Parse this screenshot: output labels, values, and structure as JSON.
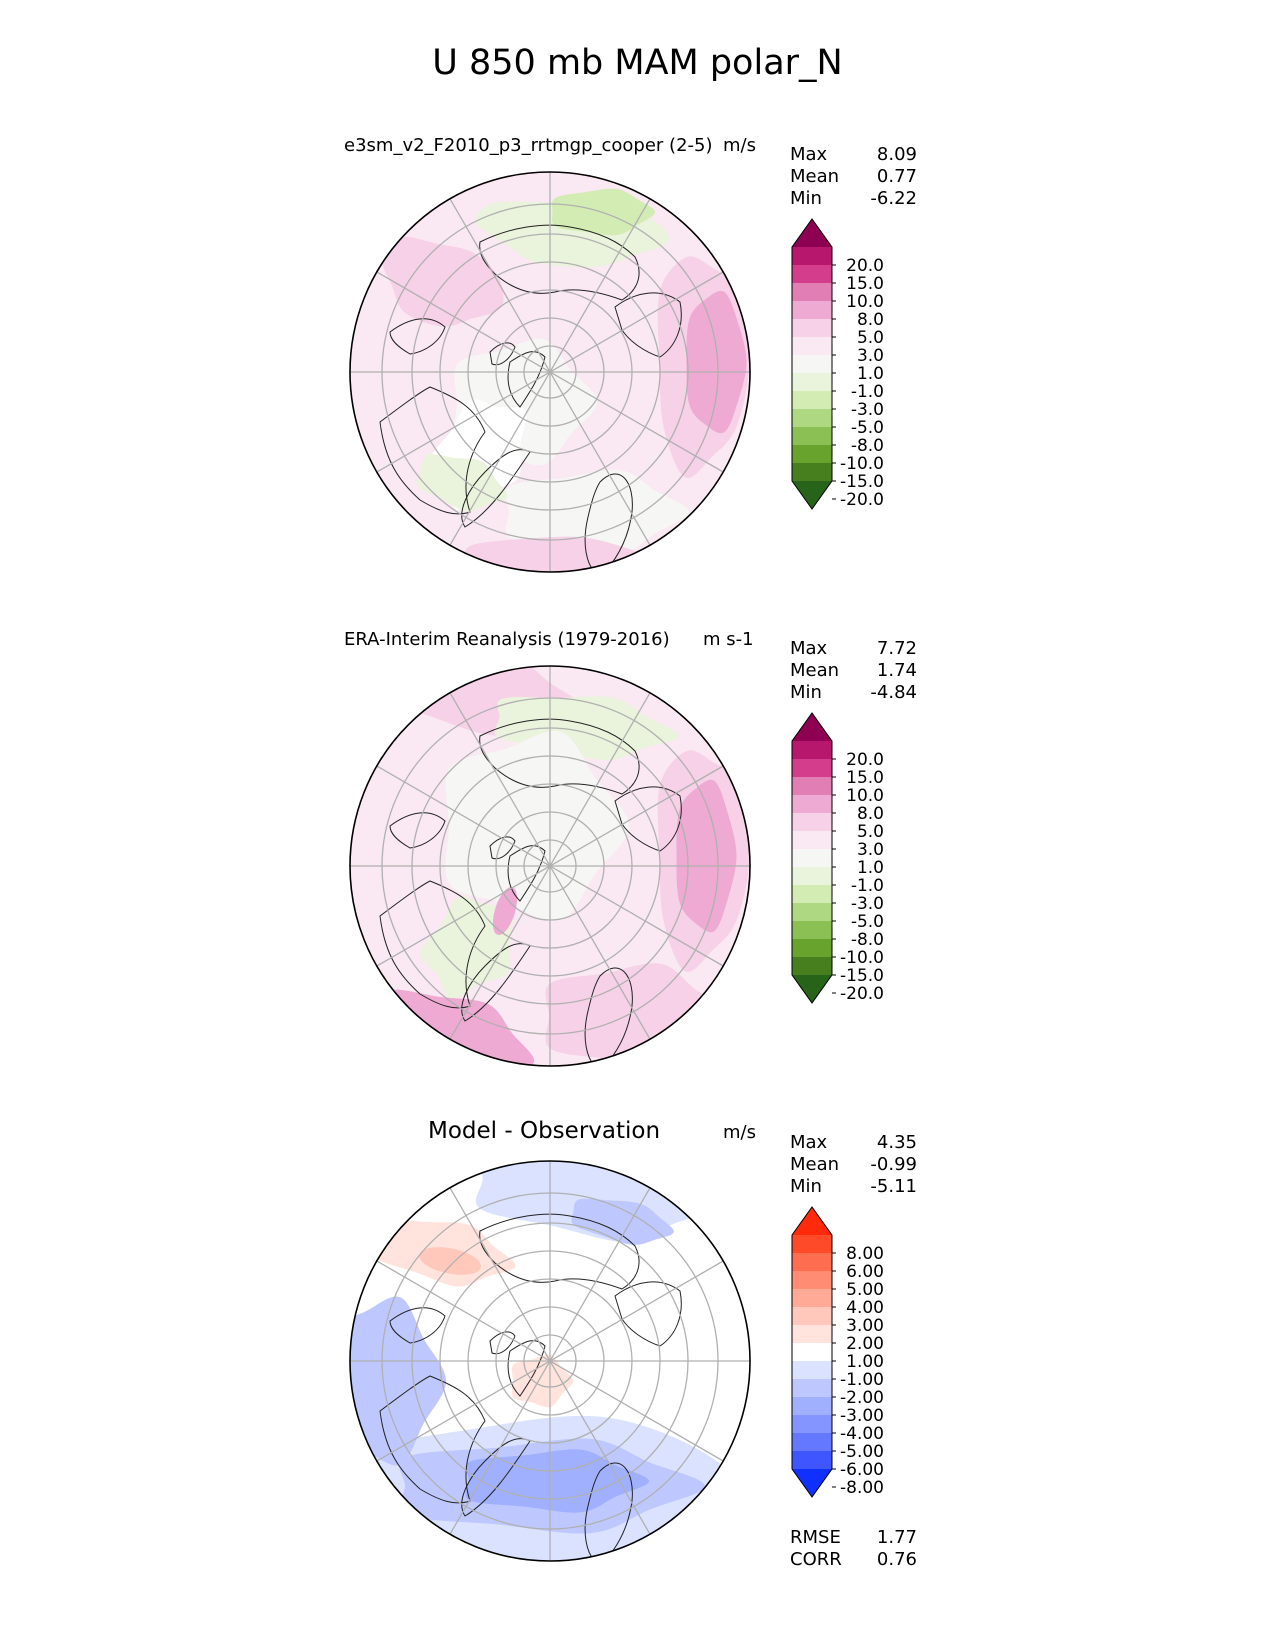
{
  "title": "U 850 mb MAM polar_N",
  "panels": [
    {
      "id": "test",
      "title": "e3sm_v2_F2010_p3_rrtmgp_cooper (2-5)",
      "units": "m/s",
      "stats": [
        {
          "label": "Max",
          "value": "8.09"
        },
        {
          "label": "Mean",
          "value": "0.77"
        },
        {
          "label": "Min",
          "value": "-6.22"
        }
      ]
    },
    {
      "id": "ref",
      "title": "ERA-Interim Reanalysis (1979-2016)",
      "units": "m s-1",
      "stats": [
        {
          "label": "Max",
          "value": "7.72"
        },
        {
          "label": "Mean",
          "value": "1.74"
        },
        {
          "label": "Min",
          "value": "-4.84"
        }
      ]
    },
    {
      "id": "diff",
      "title": "Model - Observation",
      "units": "m/s",
      "stats": [
        {
          "label": "Max",
          "value": "4.35"
        },
        {
          "label": "Mean",
          "value": "-0.99"
        },
        {
          "label": "Min",
          "value": "-5.11"
        }
      ],
      "metrics": [
        {
          "label": "RMSE",
          "value": "1.77"
        },
        {
          "label": "CORR",
          "value": "0.76"
        }
      ]
    }
  ],
  "chart_data": [
    {
      "type": "heatmap",
      "title": "e3sm_v2_F2010_p3_rrtmgp_cooper (2-5)",
      "projection": "north polar stereographic",
      "colorbar": {
        "levels": [
          "20.0",
          "15.0",
          "10.0",
          "8.0",
          "5.0",
          "3.0",
          "1.0",
          "-1.0",
          "-3.0",
          "-5.0",
          "-8.0",
          "-10.0",
          "-15.0",
          "-20.0"
        ],
        "colors": [
          "#8e0152",
          "#b8176e",
          "#d43d8b",
          "#e17fb5",
          "#eeaad2",
          "#f6d1e7",
          "#fae8f2",
          "#f6f6f4",
          "#eaf3dc",
          "#d2ecb4",
          "#afd882",
          "#8bc154",
          "#68a32d",
          "#487f1e",
          "#276419"
        ]
      }
    },
    {
      "type": "heatmap",
      "title": "ERA-Interim Reanalysis (1979-2016)",
      "projection": "north polar stereographic",
      "colorbar": {
        "levels": [
          "20.0",
          "15.0",
          "10.0",
          "8.0",
          "5.0",
          "3.0",
          "1.0",
          "-1.0",
          "-3.0",
          "-5.0",
          "-8.0",
          "-10.0",
          "-15.0",
          "-20.0"
        ],
        "colors": [
          "#8e0152",
          "#b8176e",
          "#d43d8b",
          "#e17fb5",
          "#eeaad2",
          "#f6d1e7",
          "#fae8f2",
          "#f6f6f4",
          "#eaf3dc",
          "#d2ecb4",
          "#afd882",
          "#8bc154",
          "#68a32d",
          "#487f1e",
          "#276419"
        ]
      }
    },
    {
      "type": "heatmap",
      "title": "Model - Observation",
      "projection": "north polar stereographic",
      "colorbar": {
        "levels": [
          "8.00",
          "6.00",
          "5.00",
          "4.00",
          "3.00",
          "2.00",
          "1.00",
          "-1.00",
          "-2.00",
          "-3.00",
          "-4.00",
          "-5.00",
          "-6.00",
          "-8.00"
        ],
        "colors": [
          "#ff2a0c",
          "#ff4a2a",
          "#ff6d50",
          "#ff8c73",
          "#ffaa97",
          "#ffc8ba",
          "#ffe3dc",
          "#ffffff",
          "#dbe2ff",
          "#bec8ff",
          "#a0b0ff",
          "#8495ff",
          "#6377ff",
          "#3f56ff",
          "#1030ff"
        ]
      }
    }
  ]
}
